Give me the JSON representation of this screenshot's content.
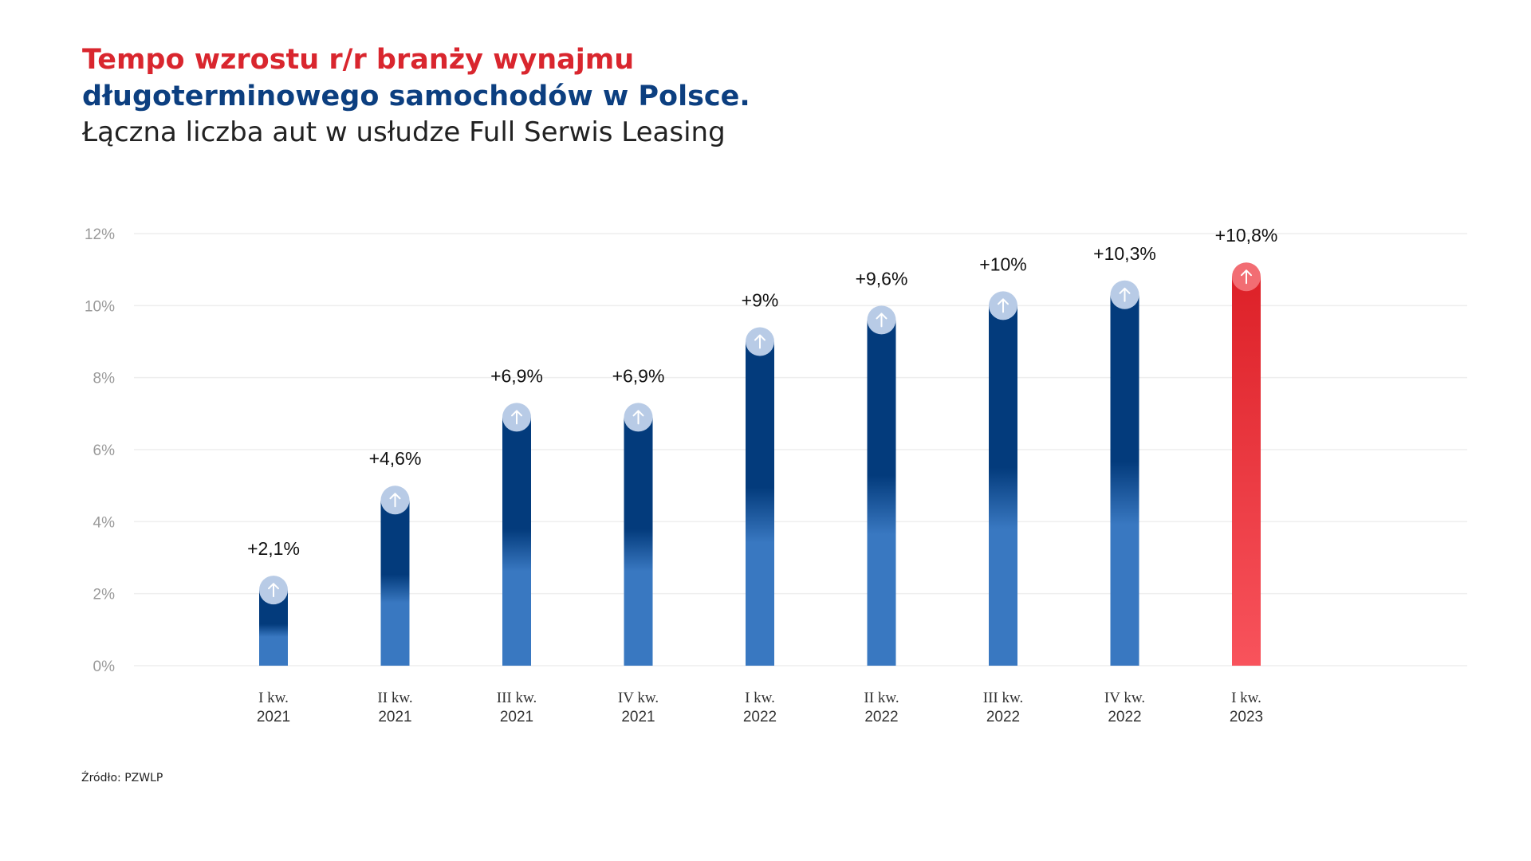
{
  "header": {
    "title_line1": "Tempo wzrostu r/r branży wynajmu",
    "title_line2": "długoterminowego samochodów w Polsce.",
    "subtitle": "Łączna liczba aut w usłudze Full Serwis Leasing"
  },
  "footer": {
    "source": "Źródło: PZWLP"
  },
  "colors": {
    "title_red": "#d9262e",
    "title_blue": "#0c3f80",
    "bar_blue_top": "#033b7c",
    "bar_blue_bottom": "#3978c1",
    "bar_red_top": "#dd2128",
    "bar_red_bottom": "#f8535c",
    "marker_blue": "#b8cbe6",
    "marker_red": "#f26d73",
    "grid": "#eeeeee"
  },
  "chart_data": {
    "type": "bar",
    "title": "Tempo wzrostu r/r branży wynajmu długoterminowego samochodów w Polsce.",
    "subtitle": "Łączna liczba aut w usłudze Full Serwis Leasing",
    "categories": [
      [
        "I kw.",
        "2021"
      ],
      [
        "II kw.",
        "2021"
      ],
      [
        "III kw.",
        "2021"
      ],
      [
        "IV kw.",
        "2021"
      ],
      [
        "I kw.",
        "2022"
      ],
      [
        "II kw.",
        "2022"
      ],
      [
        "III kw.",
        "2022"
      ],
      [
        "IV kw.",
        "2022"
      ],
      [
        "I kw.",
        "2023"
      ]
    ],
    "values": [
      2.1,
      4.6,
      6.9,
      6.9,
      9,
      9.6,
      10,
      10.3,
      10.8
    ],
    "data_labels": [
      "+2,1%",
      "+4,6%",
      "+6,9%",
      "+6,9%",
      "+9%",
      "+9,6%",
      "+10%",
      "+10,3%",
      "+10,8%"
    ],
    "highlight_index": 8,
    "ylim": [
      0,
      12
    ],
    "yticks": [
      0,
      2,
      4,
      6,
      8,
      10,
      12
    ],
    "ytick_labels": [
      "0%",
      "2%",
      "4%",
      "6%",
      "8%",
      "10%",
      "12%"
    ],
    "marker_icon": "arrow-up-icon",
    "grid": true,
    "xlabel": "",
    "ylabel": ""
  }
}
